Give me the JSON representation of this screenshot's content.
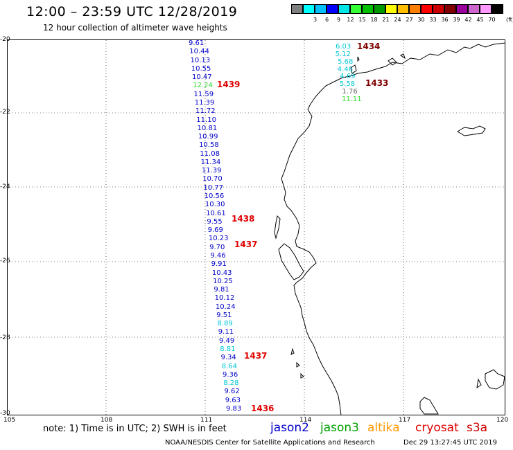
{
  "header": {
    "title": "12:00 – 23:59 UTC 12/28/2019",
    "subtitle": "12 hour collection of altimeter wave heights"
  },
  "scale": {
    "unit": "(ft)",
    "bins": [
      {
        "label": "",
        "color": "#7f7f7f"
      },
      {
        "label": "3",
        "color": "#00ffff"
      },
      {
        "label": "6",
        "color": "#00bfff"
      },
      {
        "label": "9",
        "color": "#0000ff"
      },
      {
        "label": "12",
        "color": "#00e5e5"
      },
      {
        "label": "15",
        "color": "#33ff33"
      },
      {
        "label": "18",
        "color": "#00c000"
      },
      {
        "label": "21",
        "color": "#009900"
      },
      {
        "label": "24",
        "color": "#ffff00"
      },
      {
        "label": "27",
        "color": "#ffbf00"
      },
      {
        "label": "30",
        "color": "#ff8000"
      },
      {
        "label": "33",
        "color": "#ff0000"
      },
      {
        "label": "36",
        "color": "#cc0000"
      },
      {
        "label": "39",
        "color": "#800000"
      },
      {
        "label": "42",
        "color": "#990099"
      },
      {
        "label": "45",
        "color": "#cc66cc"
      },
      {
        "label": "70",
        "color": "#ff99ff"
      },
      {
        "label": "",
        "color": "#000000"
      }
    ]
  },
  "axes": {
    "lat_labels": [
      "-20",
      "-22",
      "-24",
      "-26",
      "-28",
      "-30"
    ],
    "lon_labels": [
      "105",
      "108",
      "111",
      "114",
      "117",
      "120"
    ]
  },
  "colors": {
    "jason2": "#0000cc",
    "jason3": "#00a000",
    "altika": "#ff9900",
    "cryosat": "#e00000",
    "s3a": "#cc0000",
    "pass_number": "#e00000",
    "pass_number_dark": "#800000",
    "cyan": "#00c8d8",
    "light_green": "#33dd33",
    "gray": "#666666"
  },
  "track_main": {
    "values": [
      "9.61",
      "10.44",
      "10.13",
      "10.55",
      "10.47",
      "12.24",
      "11.59",
      "11.39",
      "11.72",
      "11.10",
      "10.81",
      "10.99",
      "10.58",
      "11.08",
      "11.34",
      "11.39",
      "10.70",
      "10.77",
      "10.56",
      "10.30",
      "10.61",
      "9.55",
      "9.69",
      "10.23",
      "9.70",
      "9.46",
      "9.91",
      "10.43",
      "10.25",
      "9.81",
      "10.12",
      "10.24",
      "9.51",
      "8.89",
      "9.11",
      "9.49",
      "8.81",
      "9.34",
      "8.64",
      "9.36",
      "8.28",
      "9.62",
      "9.63",
      "9.83"
    ],
    "value_colors": [
      "b",
      "b",
      "b",
      "b",
      "b",
      "g",
      "b",
      "b",
      "b",
      "b",
      "b",
      "b",
      "b",
      "b",
      "b",
      "b",
      "b",
      "b",
      "b",
      "b",
      "b",
      "b",
      "b",
      "b",
      "b",
      "b",
      "b",
      "b",
      "b",
      "b",
      "b",
      "b",
      "b",
      "c",
      "b",
      "b",
      "c",
      "b",
      "c",
      "b",
      "c",
      "b",
      "b",
      "b"
    ]
  },
  "track_coast": {
    "values": [
      "6.03",
      "5.12",
      "5.68",
      "4.46",
      "4.69",
      "5.58",
      "1.76",
      "11.11"
    ],
    "value_colors": [
      "c",
      "c",
      "c",
      "c",
      "c",
      "c",
      "gray",
      "lg"
    ]
  },
  "passes": [
    "1434",
    "1439",
    "1433",
    "1438",
    "1437",
    "1437",
    "1436"
  ],
  "footer": {
    "note": "note: 1) Time is in UTC; 2) SWH is in feet",
    "satellites": [
      "jason2",
      "jason3",
      "altika",
      "cryosat",
      "s3a"
    ],
    "credit": "NOAA/NESDIS Center for Satellite Applications and Research",
    "timestamp": "Dec 29 13:27:45 UTC 2019"
  }
}
